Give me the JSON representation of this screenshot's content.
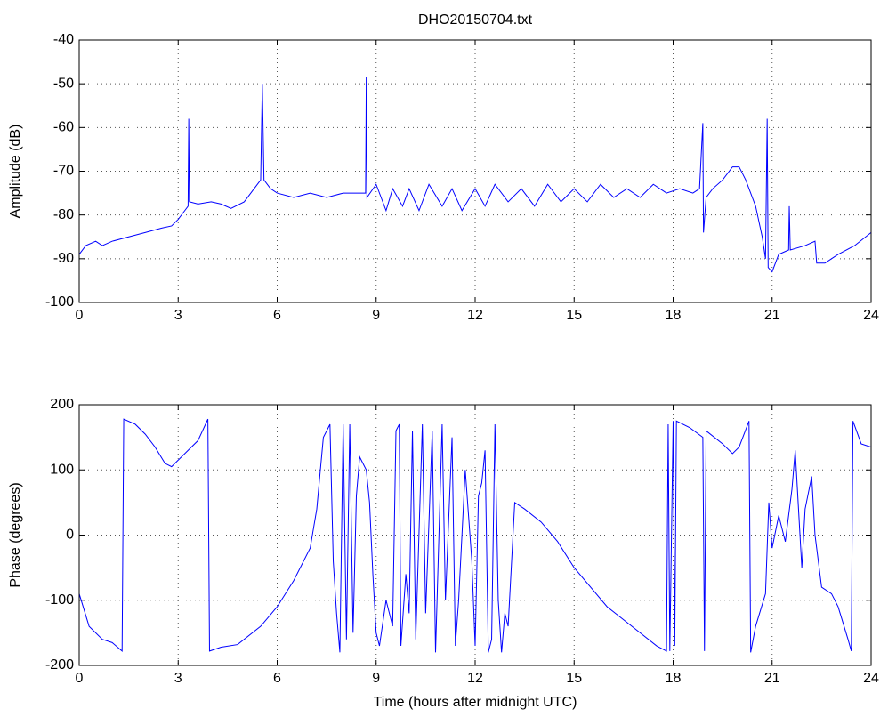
{
  "chart_data": [
    {
      "type": "line",
      "title": "DHO20150704.txt",
      "ylabel": "Amplitude (dB)",
      "xlim": [
        0,
        24
      ],
      "xticks": [
        0,
        3,
        6,
        9,
        12,
        15,
        18,
        21,
        24
      ],
      "ylim": [
        -100,
        -40
      ],
      "yticks": [
        -100,
        -90,
        -80,
        -70,
        -60,
        -50,
        -40
      ],
      "grid": true,
      "series": [
        {
          "name": "Amplitude",
          "color": "#0000ff",
          "x": [
            0,
            0.2,
            0.5,
            0.7,
            1,
            1.5,
            2,
            2.5,
            2.8,
            3,
            3.2,
            3.3,
            3.32,
            3.34,
            3.6,
            4,
            4.3,
            4.6,
            5,
            5.3,
            5.5,
            5.55,
            5.6,
            5.8,
            6,
            6.5,
            7,
            7.5,
            8,
            8.5,
            8.68,
            8.7,
            8.72,
            9,
            9.3,
            9.5,
            9.8,
            10,
            10.3,
            10.6,
            11,
            11.3,
            11.6,
            12,
            12.3,
            12.6,
            13,
            13.4,
            13.8,
            14.2,
            14.6,
            15,
            15.4,
            15.8,
            16.2,
            16.6,
            17,
            17.4,
            17.8,
            18.2,
            18.6,
            18.8,
            18.9,
            18.92,
            19,
            19.2,
            19.5,
            19.8,
            20,
            20.2,
            20.5,
            20.7,
            20.8,
            20.85,
            20.88,
            21,
            21.2,
            21.5,
            21.52,
            21.55,
            22,
            22.3,
            22.35,
            22.6,
            22.8,
            23,
            23.5,
            24
          ],
          "values": [
            -89,
            -87,
            -86,
            -87,
            -86,
            -85,
            -84,
            -83,
            -82.5,
            -81,
            -79,
            -78,
            -58,
            -77,
            -77.5,
            -77,
            -77.5,
            -78.5,
            -77,
            -74,
            -72,
            -50,
            -72,
            -74,
            -75,
            -76,
            -75,
            -76,
            -75,
            -75,
            -75,
            -48.5,
            -76,
            -73,
            -79,
            -74,
            -78,
            -74,
            -79,
            -73,
            -78,
            -74,
            -79,
            -74,
            -78,
            -73,
            -77,
            -74,
            -78,
            -73,
            -77,
            -74,
            -77,
            -73,
            -76,
            -74,
            -76,
            -73,
            -75,
            -74,
            -75,
            -74,
            -59,
            -84,
            -76,
            -74,
            -72,
            -69,
            -69,
            -72,
            -78,
            -85,
            -90,
            -58,
            -92,
            -93,
            -89,
            -88,
            -78,
            -88,
            -87,
            -86,
            -91,
            -91,
            -90,
            -89,
            -87,
            -84
          ]
        }
      ]
    },
    {
      "type": "line",
      "ylabel": "Phase (degrees)",
      "xlabel": "Time (hours after midnight UTC)",
      "xlim": [
        0,
        24
      ],
      "xticks": [
        0,
        3,
        6,
        9,
        12,
        15,
        18,
        21,
        24
      ],
      "ylim": [
        -200,
        200
      ],
      "yticks": [
        -200,
        -100,
        0,
        100,
        200
      ],
      "grid": true,
      "series": [
        {
          "name": "Phase",
          "color": "#0000ff",
          "x": [
            0,
            0.3,
            0.7,
            1.0,
            1.3,
            1.35,
            1.7,
            2,
            2.3,
            2.6,
            2.8,
            3,
            3.3,
            3.6,
            3.9,
            3.95,
            4.3,
            4.8,
            5.5,
            6,
            6.5,
            7,
            7.2,
            7.4,
            7.6,
            7.7,
            7.8,
            7.9,
            8,
            8.1,
            8.2,
            8.3,
            8.4,
            8.5,
            8.7,
            8.8,
            8.9,
            9.0,
            9.1,
            9.3,
            9.5,
            9.6,
            9.7,
            9.75,
            9.9,
            10.0,
            10.1,
            10.2,
            10.4,
            10.5,
            10.7,
            10.8,
            11,
            11.1,
            11.3,
            11.4,
            11.5,
            11.7,
            11.9,
            12,
            12.1,
            12.2,
            12.3,
            12.4,
            12.5,
            12.6,
            12.7,
            12.8,
            12.9,
            13,
            13.2,
            13.5,
            14,
            14.5,
            15,
            15.5,
            16,
            16.5,
            17,
            17.5,
            17.8,
            17.85,
            17.9,
            18,
            18.05,
            18.1,
            18.5,
            18.9,
            18.95,
            19.0,
            19.5,
            19.8,
            20,
            20.3,
            20.35,
            20.5,
            20.8,
            20.9,
            21.0,
            21.2,
            21.4,
            21.6,
            21.7,
            21.8,
            21.9,
            22,
            22.2,
            22.3,
            22.5,
            22.8,
            23,
            23.3,
            23.4,
            23.45,
            23.7,
            24
          ],
          "values": [
            -90,
            -140,
            -160,
            -165,
            -178,
            178,
            170,
            155,
            135,
            110,
            105,
            115,
            130,
            145,
            178,
            -178,
            -172,
            -168,
            -140,
            -110,
            -70,
            -20,
            40,
            150,
            170,
            -40,
            -120,
            -180,
            170,
            -160,
            170,
            -150,
            60,
            120,
            100,
            50,
            -60,
            -150,
            -170,
            -100,
            -140,
            160,
            170,
            -170,
            -60,
            -120,
            160,
            -160,
            170,
            -120,
            160,
            -180,
            170,
            -100,
            150,
            -170,
            -100,
            100,
            -40,
            -170,
            60,
            80,
            130,
            -180,
            -160,
            170,
            -100,
            -180,
            -120,
            -140,
            50,
            40,
            20,
            -10,
            -50,
            -80,
            -110,
            -130,
            -150,
            -170,
            -178,
            170,
            -178,
            175,
            -170,
            175,
            165,
            150,
            -178,
            160,
            140,
            125,
            135,
            175,
            -180,
            -140,
            -90,
            50,
            -20,
            30,
            -10,
            70,
            130,
            40,
            -50,
            40,
            90,
            0,
            -80,
            -90,
            -110,
            -160,
            -178,
            175,
            140,
            135
          ]
        }
      ]
    }
  ]
}
